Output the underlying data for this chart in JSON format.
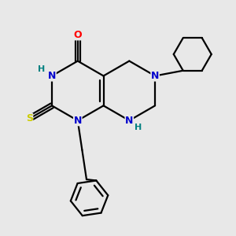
{
  "bg_color": "#e8e8e8",
  "bond_color": "#000000",
  "bond_width": 1.6,
  "atom_colors": {
    "N": "#0000cc",
    "O": "#ff0000",
    "S": "#cccc00",
    "H_label": "#008080",
    "C": "#000000"
  },
  "font_size_atom": 9,
  "font_size_H": 8,
  "figsize": [
    3.0,
    3.0
  ],
  "dpi": 100,
  "xlim": [
    0.0,
    6.5
  ],
  "ylim": [
    0.5,
    7.0
  ]
}
